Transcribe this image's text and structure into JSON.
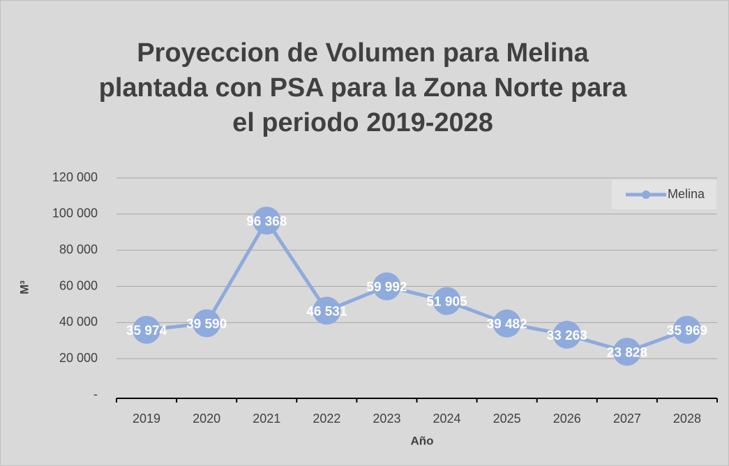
{
  "chart_data": {
    "type": "line",
    "title": [
      "Proyeccion de Volumen para Melina",
      "plantada con PSA para la Zona Norte para",
      "el periodo 2019-2028"
    ],
    "x_label": "Año",
    "y_label": "M³",
    "categories": [
      "2019",
      "2020",
      "2021",
      "2022",
      "2023",
      "2024",
      "2025",
      "2026",
      "2027",
      "2028"
    ],
    "series": [
      {
        "name": "Melina",
        "color": "#8faadc",
        "values": [
          35974,
          39590,
          96368,
          46531,
          59992,
          51905,
          39482,
          33263,
          23828,
          35969
        ],
        "value_labels": [
          "35 974",
          "39 590",
          "96 368",
          "46 531",
          "59 992",
          "51 905",
          "39 482",
          "33 263",
          "23 828",
          "35 969"
        ]
      }
    ],
    "ylim": [
      0,
      120000
    ],
    "yticks": [
      {
        "value": 0,
        "label": "-"
      },
      {
        "value": 20000,
        "label": "20 000"
      },
      {
        "value": 40000,
        "label": "40 000"
      },
      {
        "value": 60000,
        "label": "60 000"
      },
      {
        "value": 80000,
        "label": "80 000"
      },
      {
        "value": 100000,
        "label": "100 000"
      },
      {
        "value": 120000,
        "label": "120 000"
      }
    ],
    "grid": true,
    "legend": "upper right"
  }
}
